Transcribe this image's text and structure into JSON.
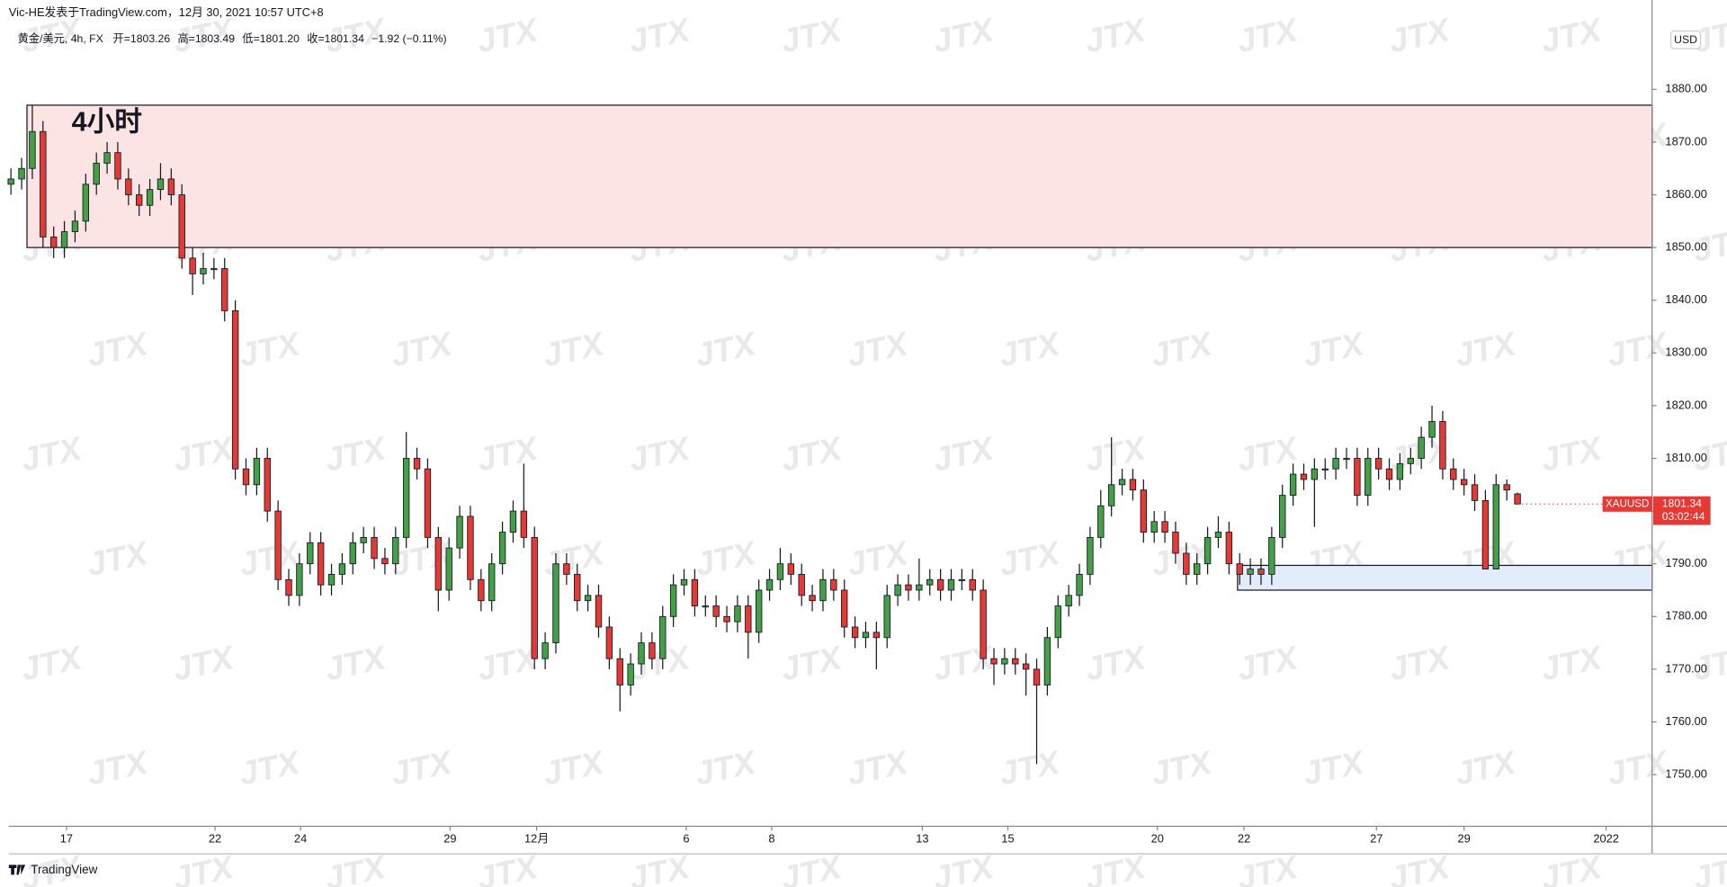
{
  "header": {
    "author_line": "Vic-HE发表于TradingView.com，12月 30, 2021 10:57 UTC+8",
    "legend": [
      "黄金/美元, 4h, FX",
      "开=1803.26",
      "高=1803.49",
      "低=1801.20",
      "收=1801.34",
      "−1.92 (−0.11%)"
    ]
  },
  "footer": {
    "brand": "TradingView"
  },
  "watermark": "JTX",
  "chart_data": {
    "type": "candlestick",
    "annotation": "4小时",
    "currency": "USD",
    "price_tag": {
      "symbol": "XAUUSD",
      "price": "1801.34",
      "countdown": "03:02:44"
    },
    "up_color": "#43a047",
    "down_color": "#e53935",
    "open": [
      1862,
      1863,
      1865,
      1872,
      1852,
      1850,
      1853,
      1855,
      1862,
      1866,
      1868,
      1863,
      1860,
      1858,
      1861,
      1863,
      1860,
      1848,
      1845,
      1846,
      1846,
      1838,
      1808,
      1805,
      1810,
      1800,
      1787,
      1784,
      1790,
      1794,
      1786,
      1788,
      1790,
      1794,
      1795,
      1791,
      1790,
      1795,
      1810,
      1808,
      1795,
      1785,
      1793,
      1799,
      1787,
      1783,
      1790,
      1796,
      1800,
      1795,
      1772,
      1775,
      1790,
      1788,
      1783,
      1784,
      1778,
      1772,
      1767,
      1771,
      1775,
      1772,
      1780,
      1786,
      1787,
      1782,
      1782,
      1780,
      1779,
      1782,
      1777,
      1785,
      1787,
      1790,
      1788,
      1784,
      1783,
      1787,
      1785,
      1778,
      1776,
      1777,
      1776,
      1784,
      1786,
      1785,
      1786,
      1787,
      1785,
      1787,
      1787,
      1785,
      1772,
      1771,
      1772,
      1771,
      1770,
      1767,
      1776,
      1782,
      1784,
      1788,
      1795,
      1801,
      1805,
      1806,
      1804,
      1796,
      1798,
      1796,
      1792,
      1788,
      1790,
      1795,
      1796,
      1790,
      1788,
      1789,
      1788,
      1795,
      1803,
      1807,
      1806,
      1808,
      1808,
      1810,
      1810,
      1803,
      1810,
      1808,
      1806,
      1809,
      1810,
      1814,
      1817,
      1808,
      1806,
      1805,
      1802,
      1789,
      1805,
      1803.26
    ],
    "high": [
      1865,
      1867,
      1877,
      1874,
      1854,
      1855,
      1857,
      1864,
      1868,
      1870,
      1870,
      1865,
      1862,
      1863,
      1866,
      1865,
      1862,
      1850,
      1849,
      1848,
      1848,
      1840,
      1810,
      1812,
      1812,
      1802,
      1789,
      1792,
      1796,
      1796,
      1790,
      1792,
      1796,
      1797,
      1797,
      1793,
      1797,
      1815,
      1812,
      1810,
      1797,
      1795,
      1801,
      1801,
      1789,
      1792,
      1798,
      1802,
      1809,
      1797,
      1777,
      1792,
      1792,
      1790,
      1786,
      1786,
      1780,
      1774,
      1773,
      1777,
      1777,
      1782,
      1788,
      1789,
      1789,
      1784,
      1784,
      1782,
      1784,
      1784,
      1787,
      1789,
      1793,
      1792,
      1790,
      1786,
      1789,
      1789,
      1787,
      1780,
      1779,
      1779,
      1786,
      1788,
      1788,
      1791,
      1789,
      1789,
      1789,
      1789,
      1789,
      1787,
      1774,
      1774,
      1774,
      1773,
      1772,
      1778,
      1784,
      1786,
      1790,
      1797,
      1804,
      1814,
      1808,
      1808,
      1806,
      1800,
      1800,
      1798,
      1794,
      1792,
      1797,
      1799,
      1798,
      1792,
      1791,
      1791,
      1797,
      1805,
      1809,
      1809,
      1810,
      1810,
      1812,
      1812,
      1812,
      1812,
      1812,
      1810,
      1811,
      1812,
      1816,
      1820,
      1819,
      1810,
      1808,
      1807,
      1804,
      1807,
      1806,
      1803.49
    ],
    "low": [
      1860,
      1861,
      1863,
      1850,
      1848,
      1848,
      1851,
      1853,
      1860,
      1864,
      1861,
      1858,
      1856,
      1856,
      1859,
      1858,
      1846,
      1841,
      1843,
      1844,
      1836,
      1806,
      1803,
      1803,
      1798,
      1785,
      1782,
      1782,
      1788,
      1784,
      1784,
      1786,
      1788,
      1792,
      1789,
      1788,
      1788,
      1793,
      1806,
      1793,
      1781,
      1783,
      1791,
      1785,
      1781,
      1781,
      1788,
      1794,
      1793,
      1770,
      1770,
      1773,
      1786,
      1781,
      1781,
      1776,
      1770,
      1762,
      1765,
      1769,
      1770,
      1770,
      1778,
      1784,
      1780,
      1780,
      1778,
      1777,
      1777,
      1772,
      1775,
      1783,
      1785,
      1786,
      1782,
      1781,
      1781,
      1783,
      1776,
      1774,
      1774,
      1770,
      1774,
      1782,
      1783,
      1783,
      1784,
      1783,
      1783,
      1785,
      1783,
      1770,
      1767,
      1769,
      1769,
      1765,
      1752,
      1765,
      1774,
      1780,
      1782,
      1786,
      1793,
      1799,
      1803,
      1802,
      1794,
      1794,
      1794,
      1790,
      1786,
      1786,
      1788,
      1793,
      1788,
      1786,
      1786,
      1786,
      1786,
      1793,
      1801,
      1804,
      1797,
      1806,
      1806,
      1808,
      1801,
      1801,
      1806,
      1804,
      1804,
      1807,
      1808,
      1812,
      1806,
      1804,
      1803,
      1800,
      1789,
      1789,
      1802,
      1801.2
    ],
    "close": [
      1863,
      1865,
      1872,
      1852,
      1850,
      1853,
      1855,
      1862,
      1866,
      1868,
      1863,
      1860,
      1858,
      1861,
      1863,
      1860,
      1848,
      1845,
      1846,
      1846,
      1838,
      1808,
      1805,
      1810,
      1800,
      1787,
      1784,
      1790,
      1794,
      1786,
      1788,
      1790,
      1794,
      1795,
      1791,
      1790,
      1795,
      1810,
      1808,
      1795,
      1785,
      1793,
      1799,
      1787,
      1783,
      1790,
      1796,
      1800,
      1795,
      1772,
      1775,
      1790,
      1788,
      1783,
      1784,
      1778,
      1772,
      1767,
      1771,
      1775,
      1772,
      1780,
      1786,
      1787,
      1782,
      1782,
      1780,
      1779,
      1782,
      1777,
      1785,
      1787,
      1790,
      1788,
      1784,
      1783,
      1787,
      1785,
      1778,
      1776,
      1777,
      1776,
      1784,
      1786,
      1785,
      1786,
      1787,
      1785,
      1787,
      1787,
      1785,
      1772,
      1771,
      1772,
      1771,
      1770,
      1767,
      1776,
      1782,
      1784,
      1788,
      1795,
      1801,
      1805,
      1806,
      1804,
      1796,
      1798,
      1796,
      1792,
      1788,
      1790,
      1795,
      1796,
      1790,
      1788,
      1789,
      1788,
      1795,
      1803,
      1807,
      1806,
      1808,
      1808,
      1810,
      1810,
      1803,
      1810,
      1808,
      1806,
      1809,
      1810,
      1814,
      1817,
      1808,
      1806,
      1805,
      1802,
      1789,
      1805,
      1804,
      1801.34
    ],
    "zones": [
      {
        "from": 1850,
        "to": 1877,
        "start": 1.5,
        "color": "#fde4e4"
      },
      {
        "from": 1785,
        "to": 1789.7,
        "start": 114.8,
        "color": "#e3ecfb"
      }
    ],
    "xlim": [
      -0.2,
      153.6
    ],
    "xticks": [
      {
        "value": 5.2,
        "label": "17"
      },
      {
        "value": 19.1,
        "label": "22"
      },
      {
        "value": 27.1,
        "label": "24"
      },
      {
        "value": 41.1,
        "label": "29"
      },
      {
        "value": 49.2,
        "label": "12月"
      },
      {
        "value": 63.2,
        "label": "6"
      },
      {
        "value": 71.2,
        "label": "8"
      },
      {
        "value": 85.3,
        "label": "13"
      },
      {
        "value": 93.3,
        "label": "15"
      },
      {
        "value": 107.3,
        "label": "20"
      },
      {
        "value": 115.4,
        "label": "22"
      },
      {
        "value": 127.8,
        "label": "27"
      },
      {
        "value": 136,
        "label": "29"
      },
      {
        "value": 149.3,
        "label": "2022"
      }
    ],
    "ylim": [
      1740.2,
      1892.75
    ],
    "yticks": [
      {
        "value": 1750,
        "label": "1750.00"
      },
      {
        "value": 1760,
        "label": "1760.00"
      },
      {
        "value": 1770,
        "label": "1770.00"
      },
      {
        "value": 1780,
        "label": "1780.00"
      },
      {
        "value": 1790,
        "label": "1790.00"
      },
      {
        "value": 1800,
        "label": "1800.00"
      },
      {
        "value": 1810,
        "label": "1810.00"
      },
      {
        "value": 1820,
        "label": "1820.00"
      },
      {
        "value": 1830,
        "label": "1830.00"
      },
      {
        "value": 1840,
        "label": "1840.00"
      },
      {
        "value": 1850,
        "label": "1850.00"
      },
      {
        "value": 1860,
        "label": "1860.00"
      },
      {
        "value": 1870,
        "label": "1870.00"
      },
      {
        "value": 1880,
        "label": "1880.00"
      }
    ],
    "grid": false
  }
}
